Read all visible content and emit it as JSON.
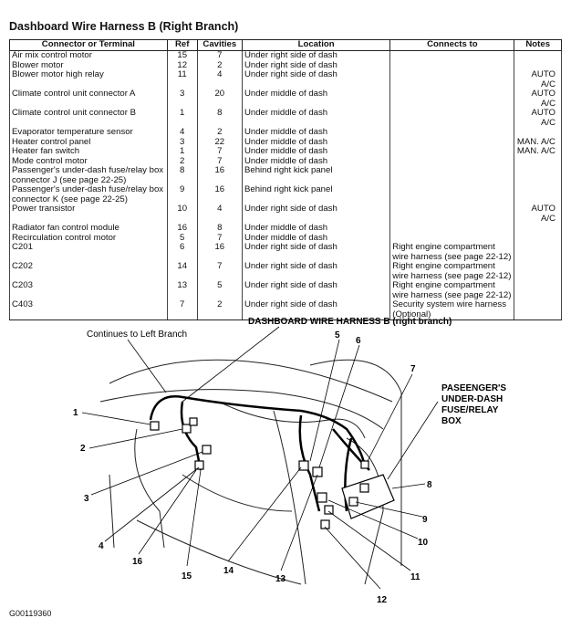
{
  "title": "Dashboard Wire Harness B (Right Branch)",
  "table": {
    "headers": [
      "Connector or Terminal",
      "Ref",
      "Cavities",
      "Location",
      "Connects to",
      "Notes"
    ],
    "rows": [
      [
        "Air mix control motor",
        "15",
        "7",
        "Under right side of dash",
        "",
        ""
      ],
      [
        "Blower motor",
        "12",
        "2",
        "Under right side of dash",
        "",
        ""
      ],
      [
        "Blower motor high relay",
        "11",
        "4",
        "Under right side of dash",
        "",
        "AUTO A/C"
      ],
      [
        "Climate control unit connector A",
        "3",
        "20",
        "Under middle of dash",
        "",
        "AUTO A/C"
      ],
      [
        "Climate control unit connector B",
        "1",
        "8",
        "Under middle of dash",
        "",
        "AUTO A/C"
      ],
      [
        "Evaporator temperature sensor",
        "4",
        "2",
        "Under middle of dash",
        "",
        ""
      ],
      [
        "Heater control panel",
        "3",
        "22",
        "Under middle of dash",
        "",
        "MAN. A/C"
      ],
      [
        "Heater fan switch",
        "1",
        "7",
        "Under middle of dash",
        "",
        "MAN. A/C"
      ],
      [
        "Mode control motor",
        "2",
        "7",
        "Under middle of dash",
        "",
        ""
      ],
      [
        "Passenger's under-dash fuse/relay box connector J (see page 22-25)",
        "8",
        "16",
        "Behind right kick panel",
        "",
        ""
      ],
      [
        "Passenger's under-dash fuse/relay box connector K (see page 22-25)",
        "9",
        "16",
        "Behind right kick panel",
        "",
        ""
      ],
      [
        "Power transistor",
        "10",
        "4",
        "Under right side of dash",
        "",
        "AUTO A/C"
      ],
      [
        "Radiator fan control module",
        "16",
        "8",
        "Under middle of dash",
        "",
        ""
      ],
      [
        "Recirculation control motor",
        "5",
        "7",
        "Under middle of dash",
        "",
        ""
      ],
      [
        "C201",
        "6",
        "16",
        "Under right side of dash",
        "Right engine compartment wire harness (see page 22-12)",
        ""
      ],
      [
        "C202",
        "14",
        "7",
        "Under right side of dash",
        "Right engine compartment wire harness (see page 22-12)",
        ""
      ],
      [
        "C203",
        "13",
        "5",
        "Under right side of dash",
        "Right engine compartment wire harness (see page 22-12)",
        ""
      ],
      [
        "C403",
        "7",
        "2",
        "Under right side of dash",
        "Security system wire harness (Optional)",
        ""
      ]
    ]
  },
  "diagram": {
    "title": "DASHBOARD WIRE HARNESS B (right branch)",
    "continues": "Continues to Left Branch",
    "box_label": [
      "PASEENGER'S",
      "UNDER-DASH",
      "FUSE/RELAY",
      "BOX"
    ],
    "callouts": [
      "1",
      "2",
      "3",
      "4",
      "16",
      "15",
      "14",
      "13",
      "12",
      "11",
      "10",
      "9",
      "8",
      "7",
      "5",
      "6"
    ]
  },
  "figure_code": "G00119360"
}
